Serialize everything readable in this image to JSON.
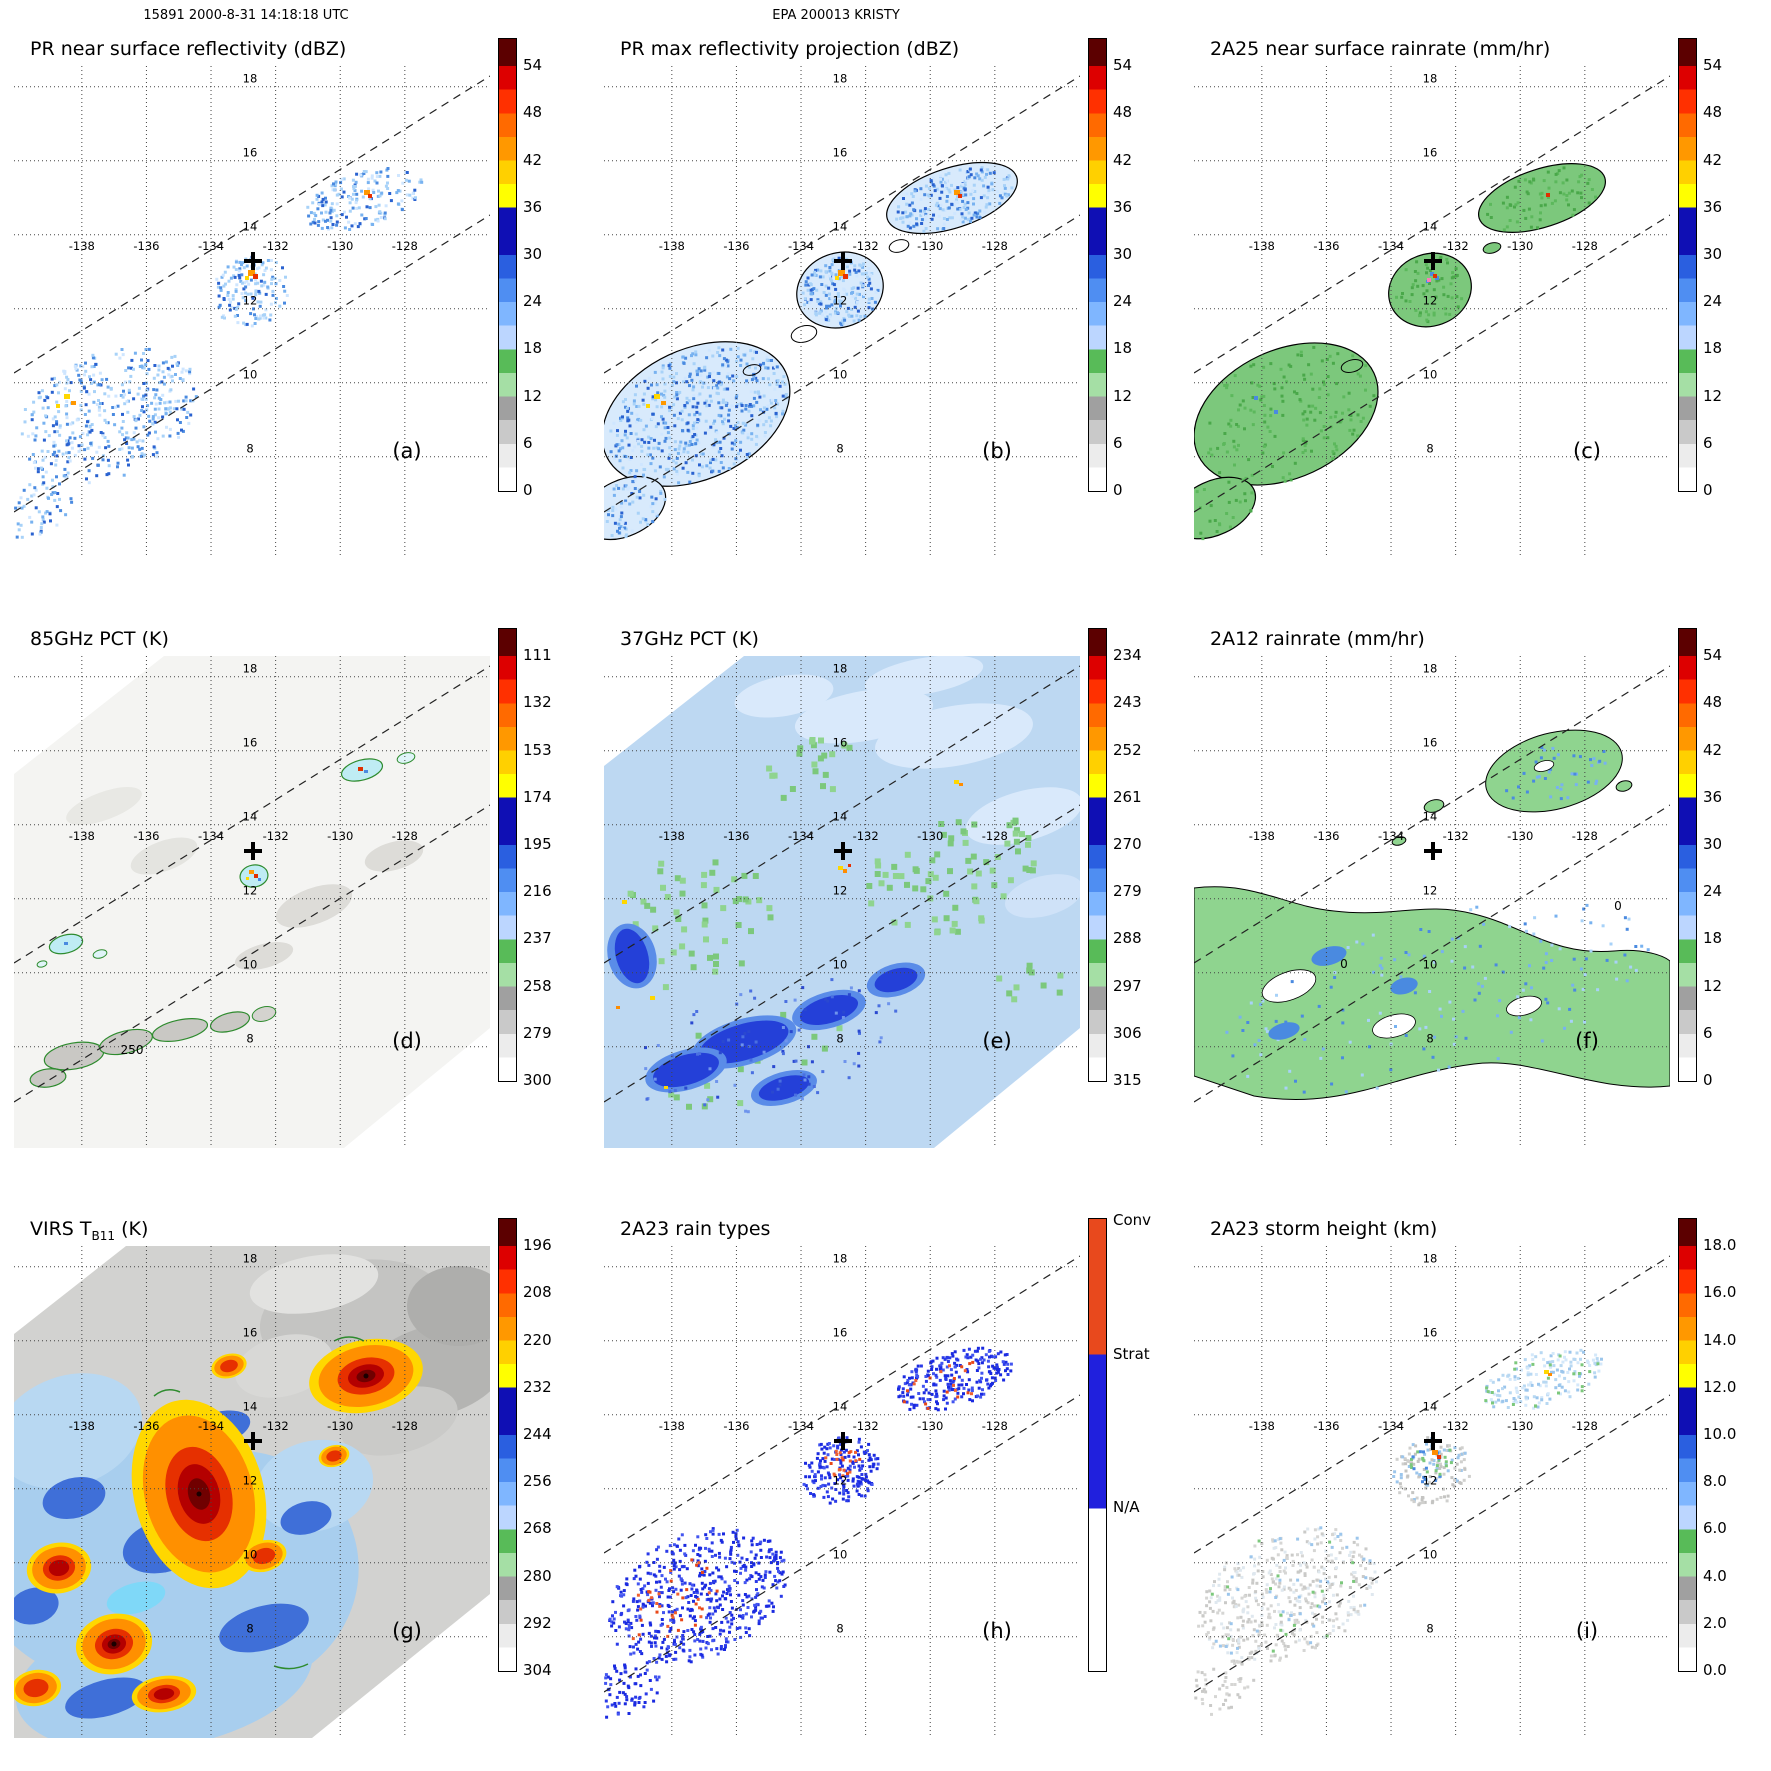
{
  "header": {
    "left": "15891 2000-8-31 14:18:18 UTC",
    "center": "EPA 200013 KRISTY"
  },
  "axes": {
    "lon_ticks": [
      "-138",
      "-136",
      "-134",
      "-132",
      "-130",
      "-128"
    ],
    "lat_ticks": [
      "18",
      "16",
      "14",
      "12",
      "10",
      "8"
    ]
  },
  "map": {
    "d_contour_label": "250",
    "f_contour_label": "0",
    "cross_symbol": "+"
  },
  "scale_colors": {
    "cap": "#5c0000",
    "intervals": [
      [
        "#dd0000",
        "#ff3000"
      ],
      [
        "#ff6a00",
        "#ff9800"
      ],
      [
        "#ffd000",
        "#ffff00"
      ],
      [
        "#0f0fb4",
        "#0f0fb4"
      ],
      [
        "#2a5fe0",
        "#4f8ef2"
      ],
      [
        "#7fb6ff",
        "#bcd6ff"
      ],
      [
        "#58bb58",
        "#a5dfa5"
      ],
      [
        "#a0a0a0",
        "#c9c9c9"
      ],
      [
        "#ececec",
        "#ffffff"
      ]
    ],
    "raintype": {
      "conv": "#e8491d",
      "strat": "#2020dd",
      "na": "#ffffff"
    },
    "raintype_bounds": [
      30,
      64
    ]
  },
  "panels": [
    {
      "id": "a",
      "letter": "(a)",
      "title": "PR near surface reflectivity (dBZ)",
      "colorbar": {
        "kind": "dbz",
        "ticks": [
          "54",
          "48",
          "42",
          "36",
          "30",
          "24",
          "18",
          "12",
          "6",
          "0"
        ]
      }
    },
    {
      "id": "b",
      "letter": "(b)",
      "title": "PR max reflectivity projection (dBZ)",
      "colorbar": {
        "kind": "dbz",
        "ticks": [
          "54",
          "48",
          "42",
          "36",
          "30",
          "24",
          "18",
          "12",
          "6",
          "0"
        ]
      }
    },
    {
      "id": "c",
      "letter": "(c)",
      "title": "2A25 near surface rainrate (mm/hr)",
      "colorbar": {
        "kind": "dbz",
        "ticks": [
          "54",
          "48",
          "42",
          "36",
          "30",
          "24",
          "18",
          "12",
          "6",
          "0"
        ]
      }
    },
    {
      "id": "d",
      "letter": "(d)",
      "title": "85GHz PCT (K)",
      "colorbar": {
        "kind": "pct",
        "ticks": [
          "111",
          "132",
          "153",
          "174",
          "195",
          "216",
          "237",
          "258",
          "279",
          "300"
        ]
      }
    },
    {
      "id": "e",
      "letter": "(e)",
      "title": "37GHz PCT (K)",
      "colorbar": {
        "kind": "pct",
        "ticks": [
          "234",
          "243",
          "252",
          "261",
          "270",
          "279",
          "288",
          "297",
          "306",
          "315"
        ]
      }
    },
    {
      "id": "f",
      "letter": "(f)",
      "title": "2A12 rainrate (mm/hr)",
      "colorbar": {
        "kind": "dbz",
        "ticks": [
          "54",
          "48",
          "42",
          "36",
          "30",
          "24",
          "18",
          "12",
          "6",
          "0"
        ]
      }
    },
    {
      "id": "g",
      "letter": "(g)",
      "title": "VIRS TB11 (K)",
      "title_parts": [
        "VIRS T",
        "B11",
        " (K)"
      ],
      "colorbar": {
        "kind": "pct",
        "ticks": [
          "196",
          "208",
          "220",
          "232",
          "244",
          "256",
          "268",
          "280",
          "292",
          "304"
        ]
      }
    },
    {
      "id": "h",
      "letter": "(h)",
      "title": "2A23 rain types",
      "colorbar": {
        "kind": "raintype",
        "labels": [
          "Conv",
          "Strat",
          "N/A"
        ]
      }
    },
    {
      "id": "i",
      "letter": "(i)",
      "title": "2A23 storm height (km)",
      "colorbar": {
        "kind": "pct",
        "ticks": [
          "18.0",
          "16.0",
          "14.0",
          "12.0",
          "10.0",
          "8.0",
          "6.0",
          "4.0",
          "2.0",
          "0.0"
        ]
      }
    }
  ],
  "chart_data": {
    "type": "heatmap",
    "title": "TRMM orbit 15891 overpass of tropical cyclone KRISTY (EPA 200013), 2000-8-31 14:18:18 UTC",
    "layout": "3x3 grid of geographic swath maps, each with its own vertical colorbar on the right",
    "axes": {
      "x": "longitude (degrees)",
      "y": "latitude (degrees)",
      "lon_gridlines": [
        -138,
        -136,
        -134,
        -132,
        -130,
        -128
      ],
      "lat_gridlines": [
        8,
        10,
        12,
        14,
        16,
        18
      ],
      "grid_style": "dotted",
      "lon_range_approx": [
        -140.1,
        -125.4
      ],
      "lat_range_approx": [
        5.3,
        18.6
      ]
    },
    "storm_center_marker": {
      "symbol": "+",
      "lon": -132.7,
      "lat": 13.3
    },
    "swath_edges": "two parallel dashed lines running SW to NE mark the PR narrow-swath edges",
    "panels": [
      {
        "letter": "(a)",
        "title": "PR near surface reflectivity (dBZ)",
        "units": "dBZ",
        "colorbar_ticks": [
          54,
          48,
          42,
          36,
          30,
          24,
          18,
          12,
          6,
          0
        ],
        "features": "three speckled blue echo clusters: NE cluster near (-129.5,15) with small 42 dBZ cell; central cluster just SW of the + marker near (-133,12.7) with orange/red 42-48 dBZ core; large SW cluster (-139 to -135, 8-11) with embedded 36-42 dBZ cells"
      },
      {
        "letter": "(b)",
        "title": "PR max reflectivity projection (dBZ)",
        "units": "dBZ",
        "colorbar_ticks": [
          54,
          48,
          42,
          36,
          30,
          24,
          18,
          12,
          6,
          0
        ],
        "features": "same three clusters as (a) but broader, outlined by black contours; stronger orange/yellow cores in SW and central clusters"
      },
      {
        "letter": "(c)",
        "title": "2A25 near surface rainrate (mm/hr)",
        "units": "mm/hr",
        "colorbar_ticks": [
          54,
          48,
          42,
          36,
          30,
          24,
          18,
          12,
          6,
          0
        ],
        "features": "rain areas shown as green (~6 mm/hr) black-contoured patches matching (a); small blue/red/pink higher-rate pixels near storm center and NE cluster"
      },
      {
        "letter": "(d)",
        "title": "85GHz PCT (K)",
        "units": "K",
        "colorbar_ticks": [
          111,
          132,
          153,
          174,
          195,
          216,
          237,
          258,
          279,
          300
        ],
        "features": "wide TMI swath, mostly warm (>279 K, near-white); small cold-PCT spots (green-ringed, with red/blue pixels) near storm center (-133.5,12.5), NE (-129.5,15.2), and west (-138.5,10.5); 250 K contour chain along the southern part of the swath"
      },
      {
        "letter": "(e)",
        "title": "37GHz PCT (K)",
        "units": "K",
        "colorbar_ticks": [
          234,
          243,
          252,
          261,
          270,
          279,
          288,
          297,
          306,
          315
        ],
        "features": "swath mostly light blue (270-288 K) with scattered green (~288 K) patches mid-west and east of center; darker blue (<270 K) blobs along the southern swath; isolated yellow/orange cold pixels near the storm center, NE cell and west edge"
      },
      {
        "letter": "(f)",
        "title": "2A12 rainrate (mm/hr)",
        "units": "mm/hr",
        "colorbar_ticks": [
          54,
          48,
          42,
          36,
          30,
          24,
          18,
          12,
          6,
          0
        ],
        "features": "broad green light-rain regions bounded by black 0-contours covering the central and southern swath and a NE blob; embedded blue 12-24 mm/hr speckles; 0 contour labels on the boundaries"
      },
      {
        "letter": "(g)",
        "title": "VIRS TB11 (K)",
        "units": "K",
        "colorbar_ticks": [
          196,
          208,
          220,
          232,
          244,
          256,
          268,
          280,
          292,
          304
        ],
        "features": "full IR image: large cold convective shields (orange/red, <232 K) with dark-red cores (<208 K) over the storm center and SW quadrant, another cold cell NE near (-129.5,14.5); blue/cyan anvil edges; warm gray low cloud (>280 K) in the NE half"
      },
      {
        "letter": "(h)",
        "title": "2A23 rain types",
        "units": "category",
        "categories": [
          "Conv",
          "Strat",
          "N/A"
        ],
        "features": "PR rain pixels in the three clusters are predominantly stratiform (blue) with scattered convective (red-orange) pixels, densest near the storm center and in the SW cluster"
      },
      {
        "letter": "(i)",
        "title": "2A23 storm height (km)",
        "units": "km",
        "colorbar_ticks": [
          18,
          16,
          14,
          12,
          10,
          8,
          6,
          4,
          2,
          0
        ],
        "features": "storm heights mostly 2-6 km (gray/pale) in the three PR clusters; green/blue 6-10 km pixels in cluster cores; isolated 12+ km (orange/yellow) pixels at the storm center and NE cell"
      }
    ]
  }
}
